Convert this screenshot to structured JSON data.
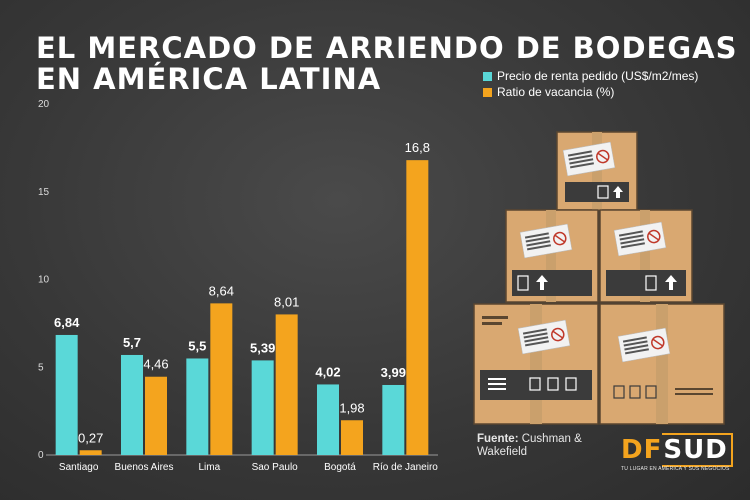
{
  "title": {
    "line1": "EL MERCADO DE ARRIENDO DE BODEGAS",
    "line2": "EN AMÉRICA LATINA"
  },
  "colors": {
    "series_a": "#5ad8d8",
    "series_b": "#f4a41e",
    "background": "#3a3a3a"
  },
  "chart_data": {
    "type": "bar",
    "title": "EL MERCADO DE ARRIENDO DE BODEGAS EN AMÉRICA LATINA",
    "xlabel": "",
    "ylabel": "",
    "ylim": [
      0,
      20
    ],
    "yticks": [
      0,
      5,
      10,
      15,
      20
    ],
    "categories": [
      "Santiago",
      "Buenos Aires",
      "Lima",
      "Sao Paulo",
      "Bogotá",
      "Río de Janeiro"
    ],
    "series": [
      {
        "name": "Precio de renta pedido (US$/m2/mes)",
        "values": [
          6.84,
          5.7,
          5.5,
          5.39,
          4.02,
          3.99
        ],
        "labels": [
          "6,84",
          "5,7",
          "5,5",
          "5,39",
          "4,02",
          "3,99"
        ]
      },
      {
        "name": "Ratio de vacancia (%)",
        "values": [
          0.27,
          4.46,
          8.64,
          8.01,
          1.98,
          16.8
        ],
        "labels": [
          "0,27",
          "4,46",
          "8,64",
          "8,01",
          "1,98",
          "16,8"
        ]
      }
    ],
    "legend_position": "top-right"
  },
  "source": {
    "label": "Fuente:",
    "text": "Cushman & Wakefield"
  },
  "logo": {
    "df": "DF",
    "sud": "SUD",
    "tagline": "TU LUGAR EN AMÉRICA Y SUS NEGOCIOS"
  },
  "illustration": {
    "icon": "stacked-boxes-icon"
  }
}
